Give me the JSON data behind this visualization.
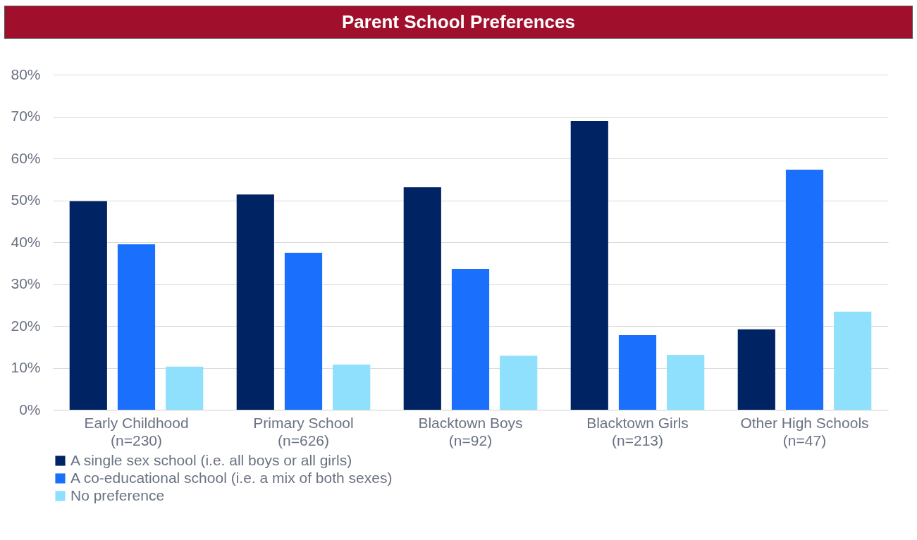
{
  "chart_data": {
    "type": "bar",
    "title": "Parent School Preferences",
    "categories": [
      "Early Childhood\n(n=230)",
      "Primary School\n(n=626)",
      "Blacktown Boys\n(n=92)",
      "Blacktown Girls\n(n=213)",
      "Other High Schools\n(n=47)"
    ],
    "series": [
      {
        "name": "A single sex school (i.e. all boys or all girls)",
        "color": "#002463",
        "values": [
          49.8,
          51.4,
          53.1,
          68.9,
          19.2
        ]
      },
      {
        "name": "A co-educational school (i.e. a mix of both sexes)",
        "color": "#1a6ffc",
        "values": [
          39.5,
          37.5,
          33.6,
          17.8,
          57.3
        ]
      },
      {
        "name": "No preference",
        "color": "#8ee0fc",
        "values": [
          10.3,
          10.8,
          12.9,
          13.1,
          23.4
        ]
      }
    ],
    "ylim": [
      0,
      80
    ],
    "yticks": [
      {
        "value": 0,
        "label": "0%"
      },
      {
        "value": 10,
        "label": "10%"
      },
      {
        "value": 20,
        "label": "20%"
      },
      {
        "value": 30,
        "label": "30%"
      },
      {
        "value": 40,
        "label": "40%"
      },
      {
        "value": 50,
        "label": "50%"
      },
      {
        "value": 60,
        "label": "60%"
      },
      {
        "value": 70,
        "label": "70%"
      },
      {
        "value": 80,
        "label": "80%"
      }
    ],
    "grid": "y",
    "legend": "bottom"
  }
}
